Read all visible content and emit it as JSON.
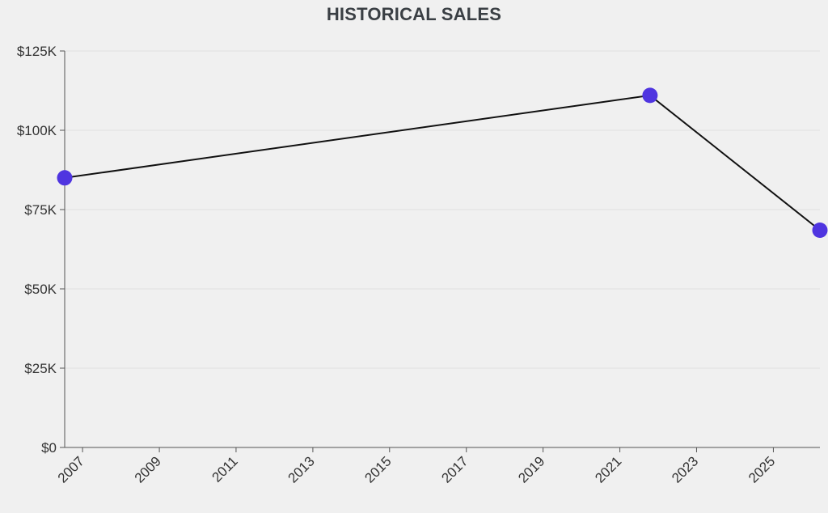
{
  "colors": {
    "background": "#f0f0f0",
    "grid": "#e0e0e0",
    "axis": "#555555",
    "line": "#111111",
    "point": "#4f35e0",
    "text": "#333333"
  },
  "chart_data": {
    "type": "line",
    "title": "HISTORICAL SALES",
    "xlabel": "",
    "ylabel": "",
    "x_ticks": [
      "2007",
      "2009",
      "2011",
      "2013",
      "2015",
      "2017",
      "2019",
      "2021",
      "2023",
      "2025"
    ],
    "y_ticks": [
      "$0",
      "$25K",
      "$50K",
      "$75K",
      "$100K",
      "$125K"
    ],
    "ylim": [
      0,
      125000
    ],
    "xlim": [
      "2006-07-15",
      "2026-03-20"
    ],
    "grid": true,
    "legend": "none",
    "series": [
      {
        "points": [
          {
            "x": "2006-07-15",
            "y": 85000
          },
          {
            "x": "2021-10-15",
            "y": 111000
          },
          {
            "x": "2026-03-20",
            "y": 68500
          }
        ]
      }
    ]
  }
}
